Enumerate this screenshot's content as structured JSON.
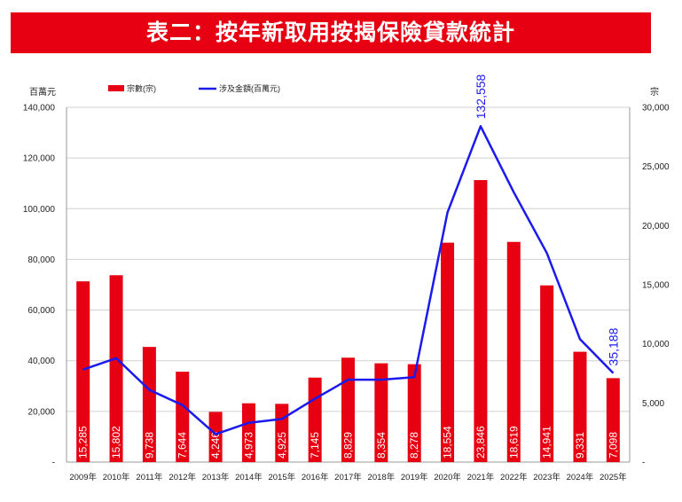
{
  "page": {
    "title": "表二：按年新取用按揭保險貸款統計"
  },
  "chart_data": {
    "type": "bar",
    "categories": [
      "2009年",
      "2010年",
      "2011年",
      "2012年",
      "2013年",
      "2014年",
      "2015年",
      "2016年",
      "2017年",
      "2018年",
      "2019年",
      "2020年",
      "2021年",
      "2022年",
      "2023年",
      "2024年",
      "2025年"
    ],
    "series": [
      {
        "name": "宗數(宗)",
        "type": "bar",
        "axis": "right",
        "color": "#e60012",
        "values": [
          15285,
          15802,
          9738,
          7644,
          4246,
          4973,
          4925,
          7145,
          8829,
          8354,
          8278,
          18554,
          23846,
          18619,
          14941,
          9331,
          7098
        ],
        "labels": [
          "15,285",
          "15,802",
          "9,738",
          "7,644",
          "4,246",
          "4,973",
          "4,925",
          "7,145",
          "8,829",
          "8,354",
          "8,278",
          "18,554",
          "23,846",
          "18,619",
          "14,941",
          "9,331",
          "7,098"
        ]
      },
      {
        "name": "涉及金額(百萬元)",
        "type": "line",
        "axis": "left",
        "color": "#1a1aee",
        "values": [
          36500,
          41000,
          28500,
          22500,
          11000,
          15500,
          17000,
          25000,
          32500,
          32500,
          33500,
          98500,
          132558,
          106500,
          82500,
          48500,
          35188
        ],
        "annotations": [
          {
            "index": 12,
            "text": "132,558"
          },
          {
            "index": 16,
            "text": "35,188"
          }
        ]
      }
    ],
    "left_axis": {
      "label": "百萬元",
      "ylim": [
        0,
        140000
      ],
      "ticks": [
        "-",
        "20,000",
        "40,000",
        "60,000",
        "80,000",
        "100,000",
        "120,000",
        "140,000"
      ]
    },
    "right_axis": {
      "label": "宗",
      "ylim": [
        0,
        30000
      ],
      "ticks": [
        "-",
        "5,000",
        "10,000",
        "15,000",
        "20,000",
        "25,000",
        "30,000"
      ]
    },
    "grid": true,
    "legend": "top-left"
  }
}
